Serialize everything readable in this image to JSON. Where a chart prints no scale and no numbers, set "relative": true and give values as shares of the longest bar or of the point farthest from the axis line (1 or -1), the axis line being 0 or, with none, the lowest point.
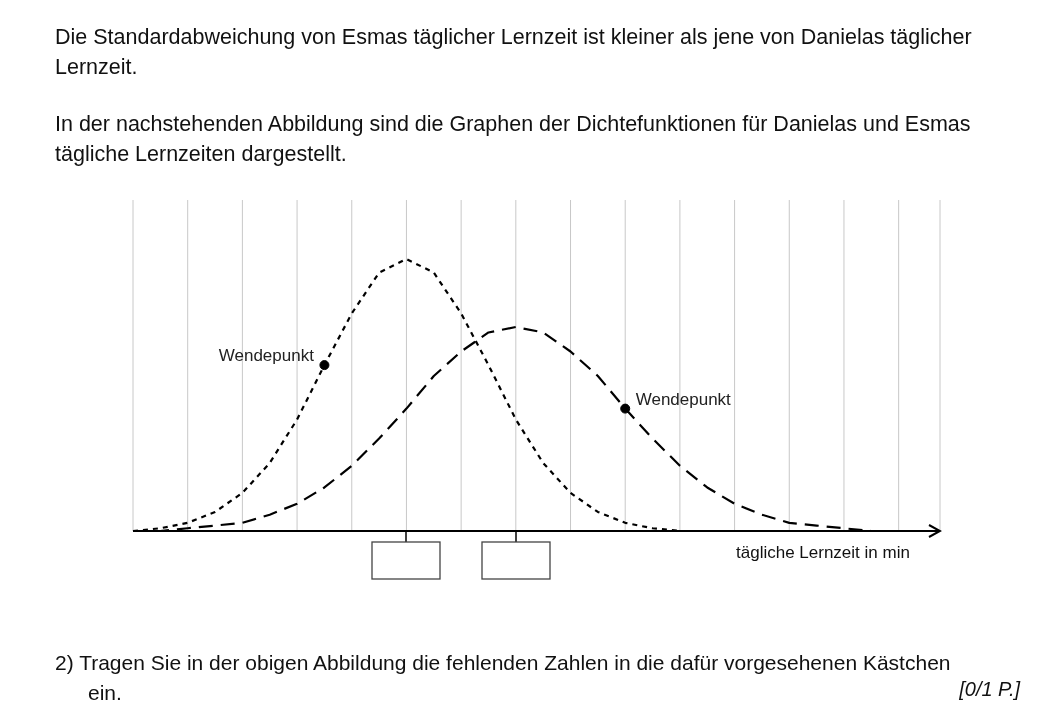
{
  "chart_data": {
    "type": "line",
    "title": "Die Standardabweichung von Esmas täglicher Lernzeit ist kleiner als jene von Danielas täglicher Lernzeit.",
    "subtitle": "In der nachstehenden Abbildung sind die Graphen der Dichtefunktionen für Danielas und Esmas tägliche Lernzeiten dargestellt.",
    "xlabel": "tägliche Lernzeit in min",
    "relative": true,
    "grid": "x",
    "marker": "none",
    "categories": [
      null,
      null,
      null,
      null,
      null,
      null,
      null,
      null,
      null,
      null,
      null,
      null,
      null,
      null,
      null,
      null,
      null,
      null,
      null,
      null,
      null,
      null,
      null,
      null,
      null,
      null,
      null,
      null,
      null,
      null
    ],
    "series": [
      {
        "color": "#000000",
        "line_style": "dotted",
        "values": [
          0,
          0.01,
          0.03,
          0.07,
          0.14,
          0.25,
          0.41,
          0.61,
          0.8,
          0.95,
          1,
          0.95,
          0.8,
          0.61,
          0.41,
          0.25,
          0.14,
          0.07,
          0.03,
          0.01,
          0,
          0,
          0,
          0,
          0,
          0,
          0,
          0,
          0,
          0
        ]
      },
      {
        "color": "#000000",
        "line_style": "dashed",
        "values": [
          0,
          0,
          0.01,
          0.02,
          0.03,
          0.06,
          0.1,
          0.16,
          0.24,
          0.34,
          0.45,
          0.57,
          0.66,
          0.73,
          0.75,
          0.73,
          0.66,
          0.57,
          0.45,
          0.34,
          0.24,
          0.16,
          0.1,
          0.06,
          0.03,
          0.02,
          0.01,
          0,
          0,
          0
        ]
      }
    ],
    "annotations": [
      "Wendepunkt",
      "Wendepunkt",
      "2) Tragen Sie in der obigen Abbildung die fehlenden Zahlen in die dafür vorgesehenen Kästchen ein.",
      "[0/1 P.]"
    ]
  }
}
